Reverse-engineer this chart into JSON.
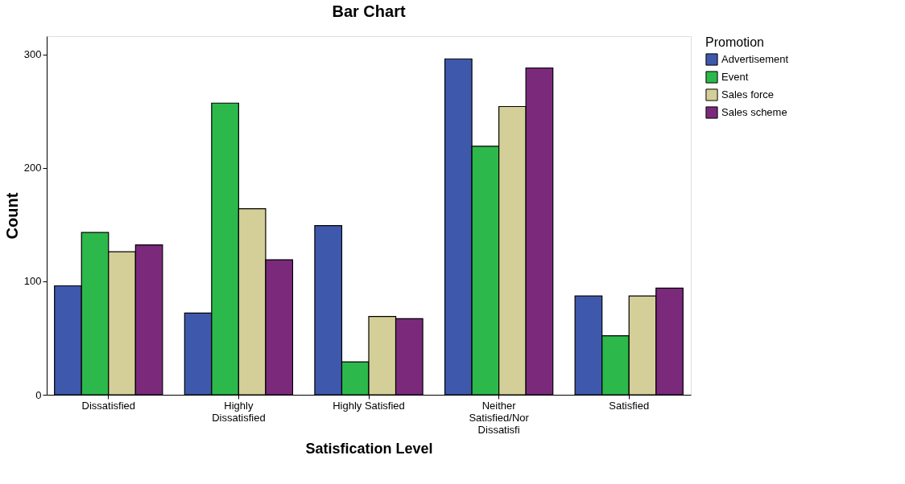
{
  "chart_data": {
    "type": "bar",
    "title": "Bar Chart",
    "xlabel": "Satisfication Level",
    "ylabel": "Count",
    "legend_title": "Promotion",
    "legend": "top right",
    "categories": [
      "Dissatisfied",
      "Highly Dissatisfied",
      "Highly Satisfied",
      "Neither Satisfied/Nor Dissatisfi",
      "Satisfied"
    ],
    "series": [
      {
        "name": "Advertisement",
        "color": "#3e58ac",
        "values": [
          96,
          72,
          149,
          296,
          87
        ]
      },
      {
        "name": "Event",
        "color": "#2db84b",
        "values": [
          143,
          257,
          29,
          219,
          52
        ]
      },
      {
        "name": "Sales force",
        "color": "#d4cf98",
        "values": [
          126,
          164,
          69,
          254,
          87
        ]
      },
      {
        "name": "Sales scheme",
        "color": "#7b2a7b",
        "values": [
          132,
          119,
          67,
          288,
          94
        ]
      }
    ],
    "ylim": [
      0,
      316
    ],
    "yticks": [
      0,
      100,
      200,
      300
    ],
    "grid": false
  }
}
